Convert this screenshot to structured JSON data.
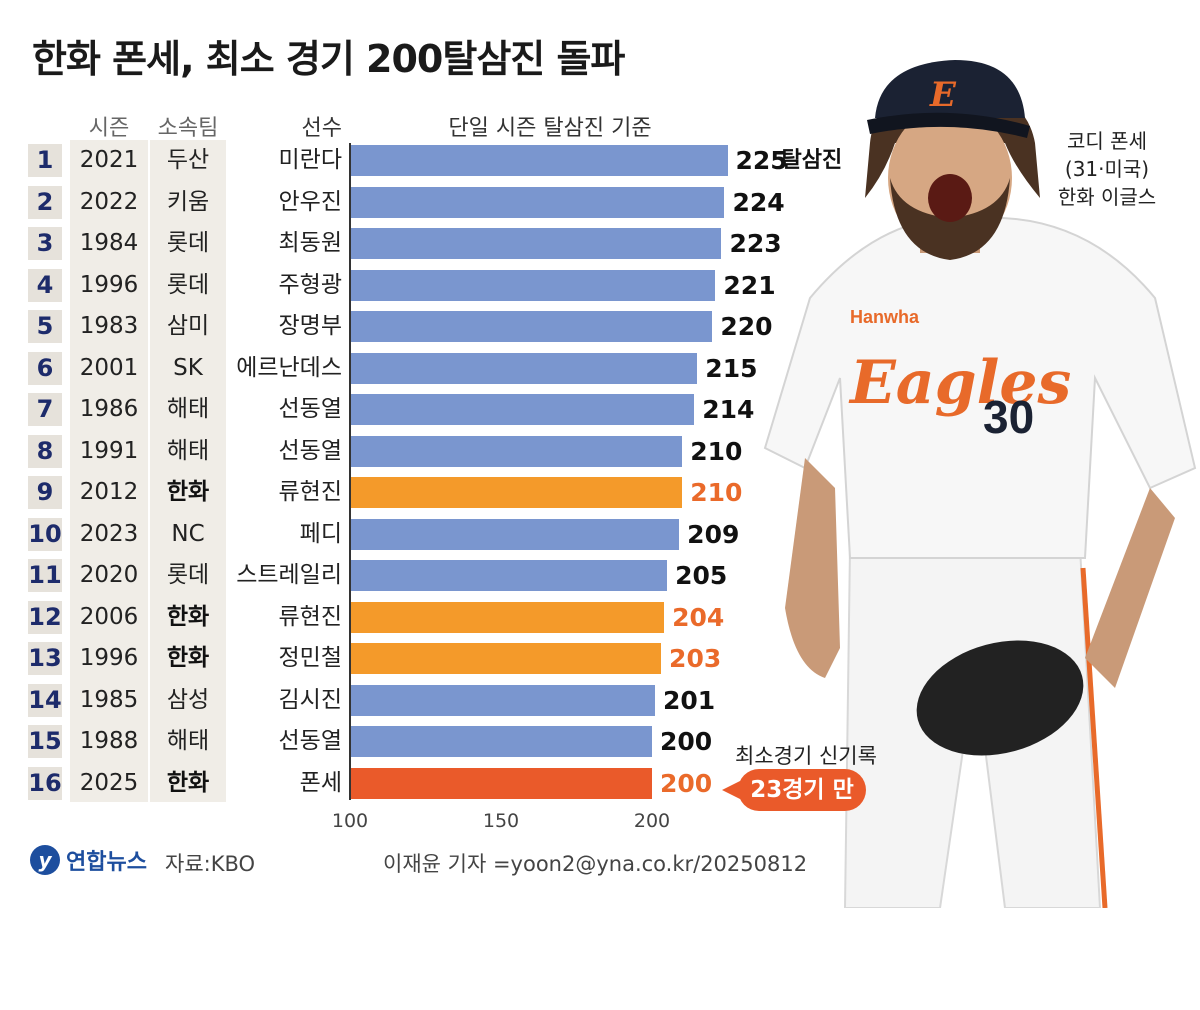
{
  "title": "한화 폰세, 최소 경기 200탈삼진 돌파",
  "headers": {
    "season": "시즌",
    "team": "소속팀",
    "player": "선수"
  },
  "colors": {
    "default_bar": "#7a96cf",
    "hanwha_bar": "#f49a2a",
    "record_bar": "#ea5a2a",
    "hanwha_value": "#ea6a2a"
  },
  "chart_data": {
    "type": "bar",
    "orientation": "horizontal",
    "title": "단일 시즌 탈삼진 기준",
    "xlim": [
      100,
      230
    ],
    "xticks": [
      100,
      150,
      200
    ],
    "value_suffix_first": "탈삼진",
    "rows": [
      {
        "rank": "1",
        "season": "2021",
        "team": "두산",
        "player": "미란다",
        "value": 225,
        "highlight": "none"
      },
      {
        "rank": "2",
        "season": "2022",
        "team": "키움",
        "player": "안우진",
        "value": 224,
        "highlight": "none"
      },
      {
        "rank": "3",
        "season": "1984",
        "team": "롯데",
        "player": "최동원",
        "value": 223,
        "highlight": "none"
      },
      {
        "rank": "4",
        "season": "1996",
        "team": "롯데",
        "player": "주형광",
        "value": 221,
        "highlight": "none"
      },
      {
        "rank": "5",
        "season": "1983",
        "team": "삼미",
        "player": "장명부",
        "value": 220,
        "highlight": "none"
      },
      {
        "rank": "6",
        "season": "2001",
        "team": "SK",
        "player": "에르난데스",
        "value": 215,
        "highlight": "none"
      },
      {
        "rank": "7",
        "season": "1986",
        "team": "해태",
        "player": "선동열",
        "value": 214,
        "highlight": "none"
      },
      {
        "rank": "8",
        "season": "1991",
        "team": "해태",
        "player": "선동열",
        "value": 210,
        "highlight": "none"
      },
      {
        "rank": "9",
        "season": "2012",
        "team": "한화",
        "player": "류현진",
        "value": 210,
        "highlight": "hanwha"
      },
      {
        "rank": "10",
        "season": "2023",
        "team": "NC",
        "player": "페디",
        "value": 209,
        "highlight": "none"
      },
      {
        "rank": "11",
        "season": "2020",
        "team": "롯데",
        "player": "스트레일리",
        "value": 205,
        "highlight": "none"
      },
      {
        "rank": "12",
        "season": "2006",
        "team": "한화",
        "player": "류현진",
        "value": 204,
        "highlight": "hanwha"
      },
      {
        "rank": "13",
        "season": "1996",
        "team": "한화",
        "player": "정민철",
        "value": 203,
        "highlight": "hanwha"
      },
      {
        "rank": "14",
        "season": "1985",
        "team": "삼성",
        "player": "김시진",
        "value": 201,
        "highlight": "none"
      },
      {
        "rank": "15",
        "season": "1988",
        "team": "해태",
        "player": "선동열",
        "value": 200,
        "highlight": "none"
      },
      {
        "rank": "16",
        "season": "2025",
        "team": "한화",
        "player": "폰세",
        "value": 200,
        "highlight": "record"
      }
    ]
  },
  "player_caption": {
    "line1": "코디 폰세",
    "line2": "(31·미국)",
    "line3": "한화 이글스"
  },
  "jersey": {
    "team_script": "Eagles",
    "number": "30",
    "sponsor": "Hanwha",
    "cap_letter": "E"
  },
  "callout": {
    "label": "최소경기 신기록",
    "badge": "23경기 만"
  },
  "footer": {
    "logo_mark": "y",
    "logo_text": "연합뉴스",
    "source": "자료:KBO",
    "credit": "이재윤 기자 =yoon2@yna.co.kr/20250812"
  }
}
